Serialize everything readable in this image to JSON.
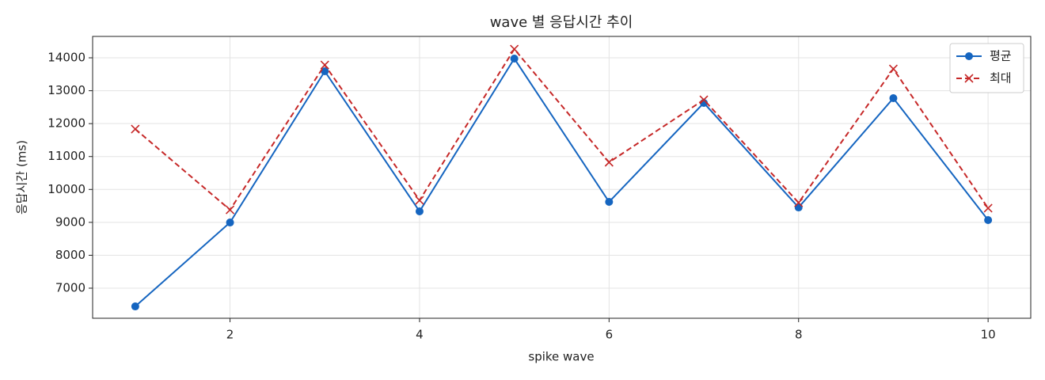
{
  "chart_data": {
    "type": "line",
    "title": "wave 별 응답시간 추이",
    "x_label": "spike wave",
    "y_label": "응답시간 (ms)",
    "x": [
      1,
      2,
      3,
      4,
      5,
      6,
      7,
      8,
      9,
      10
    ],
    "series": [
      {
        "name": "평균",
        "color": "#1565c0",
        "marker": "circle",
        "linestyle": "solid",
        "values": [
          6446,
          8996,
          13591,
          9333,
          13976,
          9622,
          12629,
          9453,
          12773,
          9069
        ]
      },
      {
        "name": "최대",
        "color": "#c62828",
        "marker": "x",
        "linestyle": "dashed",
        "values": [
          11835,
          9381,
          13783,
          9670,
          14265,
          10825,
          12725,
          9598,
          13663,
          9430
        ]
      }
    ],
    "xlim": [
      0.55,
      10.45
    ],
    "xticks": [
      2,
      4,
      6,
      8,
      10
    ],
    "ylim": [
      6086,
      14650
    ],
    "yticks": [
      7000,
      8000,
      9000,
      10000,
      11000,
      12000,
      13000,
      14000
    ],
    "grid": true,
    "legend": "upper right"
  }
}
